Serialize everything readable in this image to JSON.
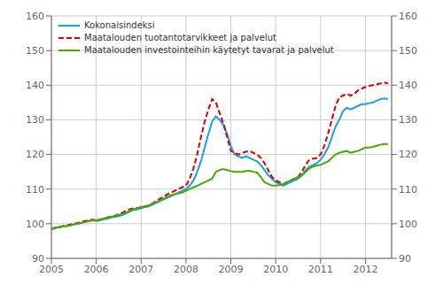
{
  "chart_data": {
    "type": "line",
    "x": [
      2005.0,
      2005.083,
      2005.167,
      2005.25,
      2005.333,
      2005.417,
      2005.5,
      2005.583,
      2005.667,
      2005.75,
      2005.833,
      2005.917,
      2006.0,
      2006.083,
      2006.167,
      2006.25,
      2006.333,
      2006.417,
      2006.5,
      2006.583,
      2006.667,
      2006.75,
      2006.833,
      2006.917,
      2007.0,
      2007.083,
      2007.167,
      2007.25,
      2007.333,
      2007.417,
      2007.5,
      2007.583,
      2007.667,
      2007.75,
      2007.833,
      2007.917,
      2008.0,
      2008.083,
      2008.167,
      2008.25,
      2008.333,
      2008.417,
      2008.5,
      2008.583,
      2008.667,
      2008.75,
      2008.833,
      2008.917,
      2009.0,
      2009.083,
      2009.167,
      2009.25,
      2009.333,
      2009.417,
      2009.5,
      2009.583,
      2009.667,
      2009.75,
      2009.833,
      2009.917,
      2010.0,
      2010.083,
      2010.167,
      2010.25,
      2010.333,
      2010.417,
      2010.5,
      2010.583,
      2010.667,
      2010.75,
      2010.833,
      2010.917,
      2011.0,
      2011.083,
      2011.167,
      2011.25,
      2011.333,
      2011.417,
      2011.5,
      2011.583,
      2011.667,
      2011.75,
      2011.833,
      2011.917,
      2012.0,
      2012.083,
      2012.167,
      2012.25,
      2012.333,
      2012.417,
      2012.5
    ],
    "series": [
      {
        "name": "Kokonaisindeksi",
        "color": "#1aa0e8",
        "line_style": "solid",
        "values": [
          98.5,
          98.8,
          99.0,
          99.2,
          99.3,
          99.5,
          99.8,
          100.0,
          100.2,
          100.5,
          100.8,
          101.0,
          100.8,
          101.0,
          101.3,
          101.5,
          101.8,
          102.0,
          102.2,
          102.5,
          103.0,
          103.5,
          104.0,
          104.2,
          104.5,
          104.8,
          105.0,
          105.5,
          106.0,
          106.5,
          107.0,
          107.5,
          108.0,
          108.5,
          109.0,
          109.5,
          110.0,
          111.0,
          112.5,
          115.0,
          118.0,
          122.0,
          126.0,
          129.5,
          131.0,
          130.0,
          128.5,
          126.0,
          122.5,
          120.0,
          119.5,
          119.0,
          119.5,
          119.0,
          118.5,
          118.0,
          117.0,
          115.5,
          114.0,
          113.0,
          112.0,
          111.5,
          111.0,
          111.5,
          112.0,
          112.5,
          113.0,
          114.0,
          115.5,
          116.5,
          117.0,
          117.5,
          118.5,
          120.0,
          122.0,
          125.0,
          128.0,
          130.0,
          132.5,
          133.5,
          133.0,
          133.5,
          134.0,
          134.5,
          134.5,
          134.8,
          135.0,
          135.5,
          136.0,
          136.2,
          136.0
        ]
      },
      {
        "name": "Maatalouden tuotantotarvikkeet ja palvelut",
        "color": "#dd0000",
        "line_style": "dashed",
        "values": [
          98.5,
          98.8,
          99.0,
          99.3,
          99.5,
          99.8,
          100.0,
          100.2,
          100.5,
          100.8,
          101.0,
          101.2,
          101.0,
          101.2,
          101.5,
          101.8,
          102.0,
          102.3,
          102.8,
          103.2,
          103.8,
          104.2,
          104.5,
          104.5,
          104.8,
          105.0,
          105.3,
          105.8,
          106.5,
          107.2,
          107.8,
          108.5,
          109.0,
          109.5,
          110.0,
          110.5,
          111.0,
          113.0,
          116.0,
          120.0,
          125.0,
          129.5,
          133.0,
          136.0,
          135.0,
          132.0,
          129.0,
          125.0,
          121.0,
          120.5,
          120.0,
          120.5,
          120.8,
          121.0,
          120.5,
          120.0,
          119.0,
          117.5,
          115.5,
          113.5,
          112.5,
          112.0,
          111.5,
          112.0,
          112.5,
          113.0,
          113.5,
          115.0,
          117.0,
          118.5,
          118.8,
          119.0,
          120.0,
          122.5,
          126.0,
          130.0,
          134.0,
          136.5,
          137.0,
          137.5,
          137.0,
          137.5,
          138.5,
          139.0,
          139.5,
          139.8,
          140.0,
          140.2,
          140.5,
          140.8,
          140.5
        ]
      },
      {
        "name": "Maatalouden investointeihin käytetyt tavarat ja palvelut",
        "color": "#44aa00",
        "line_style": "solid",
        "values": [
          98.5,
          98.8,
          99.0,
          99.2,
          99.3,
          99.5,
          99.8,
          100.0,
          100.2,
          100.5,
          100.8,
          101.0,
          101.0,
          101.2,
          101.5,
          101.8,
          102.0,
          102.2,
          102.5,
          102.8,
          103.2,
          103.8,
          104.2,
          104.5,
          104.8,
          105.0,
          105.3,
          105.8,
          106.2,
          106.8,
          107.2,
          107.8,
          108.3,
          108.5,
          108.8,
          109.0,
          109.5,
          110.0,
          110.5,
          111.0,
          111.5,
          112.0,
          112.5,
          113.0,
          115.0,
          115.5,
          115.8,
          115.5,
          115.2,
          115.0,
          115.0,
          115.0,
          115.2,
          115.3,
          115.0,
          114.8,
          113.5,
          112.0,
          111.5,
          111.0,
          111.0,
          111.2,
          111.5,
          112.0,
          112.5,
          113.0,
          113.5,
          114.0,
          115.0,
          116.0,
          116.5,
          116.8,
          117.0,
          117.5,
          118.0,
          119.0,
          120.0,
          120.5,
          120.8,
          121.0,
          120.5,
          120.8,
          121.0,
          121.5,
          122.0,
          122.0,
          122.2,
          122.5,
          122.8,
          123.0,
          123.0
        ]
      }
    ],
    "xlim": [
      2005.0,
      2012.583
    ],
    "xticks": [
      2005,
      2006,
      2007,
      2008,
      2009,
      2010,
      2011,
      2012
    ],
    "ylim": [
      90,
      160
    ],
    "yticks": [
      90,
      100,
      110,
      120,
      130,
      140,
      150,
      160
    ],
    "y2lim": [
      90,
      160
    ],
    "y2ticks": [
      90,
      100,
      110,
      120,
      130,
      140,
      150,
      160
    ],
    "grid": true,
    "legend": "upper left"
  }
}
